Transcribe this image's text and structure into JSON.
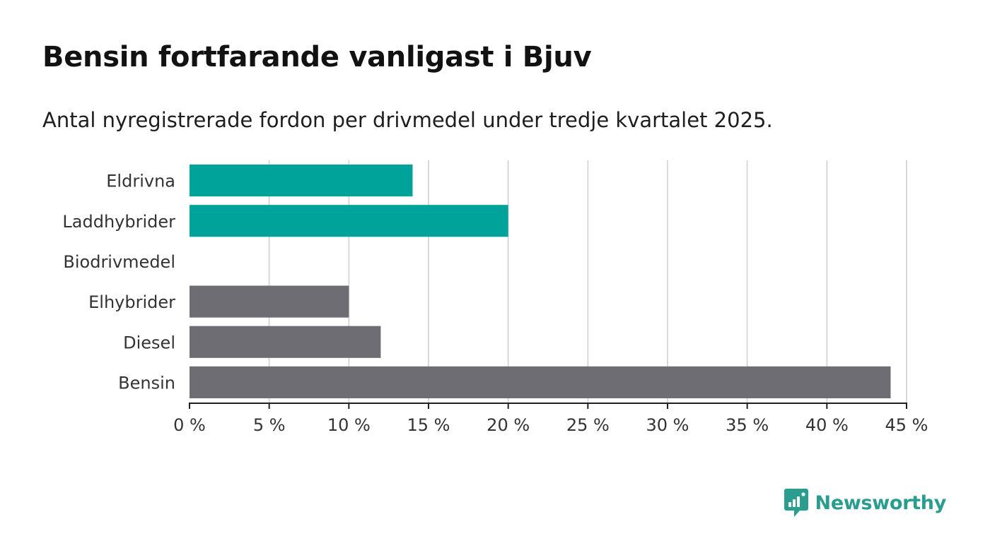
{
  "header": {
    "title": "Bensin fortfarande vanligast i Bjuv",
    "subtitle": "Antal nyregistrerade fordon per drivmedel under tredje kvartalet 2025."
  },
  "brand": {
    "name": "Newsworthy",
    "icon": "newsworthy-logo-icon",
    "color": "#2a9d8f"
  },
  "chart_data": {
    "type": "bar",
    "orientation": "horizontal",
    "title": "Bensin fortfarande vanligast i Bjuv",
    "subtitle": "Antal nyregistrerade fordon per drivmedel under tredje kvartalet 2025.",
    "xlabel": "",
    "ylabel": "",
    "categories": [
      "Eldrivna",
      "Laddhybrider",
      "Biodrivmedel",
      "Elhybrider",
      "Diesel",
      "Bensin"
    ],
    "values": [
      14,
      20,
      0,
      10,
      12,
      44
    ],
    "bar_colors": [
      "#00a39a",
      "#00a39a",
      "#00a39a",
      "#6e6d73",
      "#6e6d73",
      "#6e6d73"
    ],
    "xlim": [
      0,
      45
    ],
    "xticks": [
      0,
      5,
      10,
      15,
      20,
      25,
      30,
      35,
      40,
      45
    ],
    "xtick_labels": [
      "0 %",
      "5 %",
      "10 %",
      "15 %",
      "20 %",
      "25 %",
      "30 %",
      "35 %",
      "40 %",
      "45 %"
    ],
    "unit": "%",
    "grid": true,
    "legend": "none"
  }
}
